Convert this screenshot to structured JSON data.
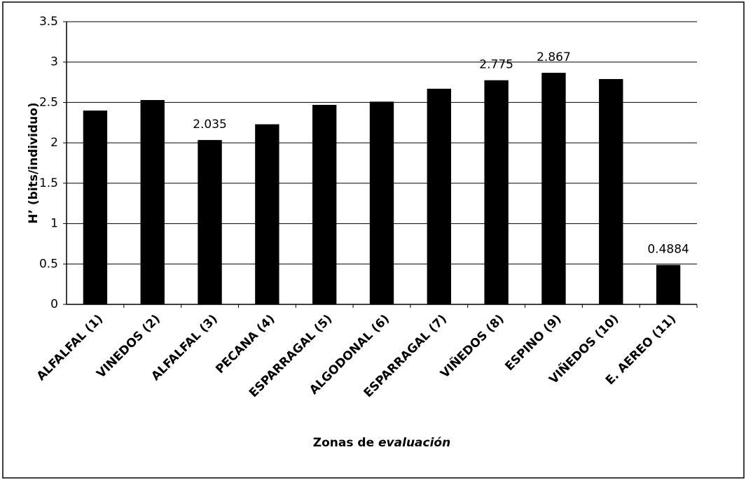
{
  "chart_data": {
    "type": "bar",
    "ylabel": "H’ (bits/individuo)",
    "xlabel": [
      "Zonas de",
      "evaluación"
    ],
    "categories": [
      "ALFALFAL (1)",
      "VINEDOS (2)",
      "ALFALFAL (3)",
      "PECANA (4)",
      "ESPARRAGAL (5)",
      "ALGODONAL (6)",
      "ESPARRAGAL (7)",
      "VIÑEDOS (8)",
      "ESPINO (9)",
      "VIÑEDOS (10)",
      "E. AEREO (11)"
    ],
    "values": [
      2.4,
      2.53,
      2.035,
      2.23,
      2.47,
      2.51,
      2.67,
      2.775,
      2.867,
      2.79,
      0.4884
    ],
    "value_labels": [
      null,
      null,
      "2.035",
      null,
      null,
      null,
      null,
      "2.775",
      "2.867",
      null,
      "0.4884"
    ],
    "color": "#000000",
    "ylim": [
      0,
      3.5
    ],
    "yticks": [
      0,
      0.5,
      1,
      1.5,
      2,
      2.5,
      3,
      3.5
    ],
    "grid": true
  }
}
